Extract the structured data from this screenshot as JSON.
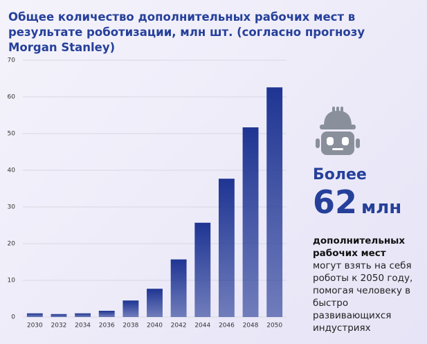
{
  "chart_data": {
    "type": "bar",
    "title": "Общее количество дополнительных рабочих мест в результате роботизации, млн шт. (согласно прогнозу Morgan Stanley)",
    "categories": [
      "2030",
      "2032",
      "2034",
      "2036",
      "2038",
      "2040",
      "2042",
      "2044",
      "2046",
      "2048",
      "2050"
    ],
    "values": [
      1.0,
      0.8,
      1.0,
      1.7,
      4.5,
      7.7,
      15.7,
      25.7,
      37.7,
      51.7,
      62.6
    ],
    "color": "#1f3593",
    "ylim": [
      0,
      70
    ],
    "yticks": [
      0,
      10,
      20,
      30,
      40,
      50,
      60,
      70
    ],
    "grid": true
  },
  "callout": {
    "lead": "Более",
    "number": "62",
    "unit": "млн",
    "bold_text": "дополнительных рабочих мест",
    "text": "могут взять на себя роботы к 2050 году, помогая человеку в быстро развивающихся индустриях"
  }
}
